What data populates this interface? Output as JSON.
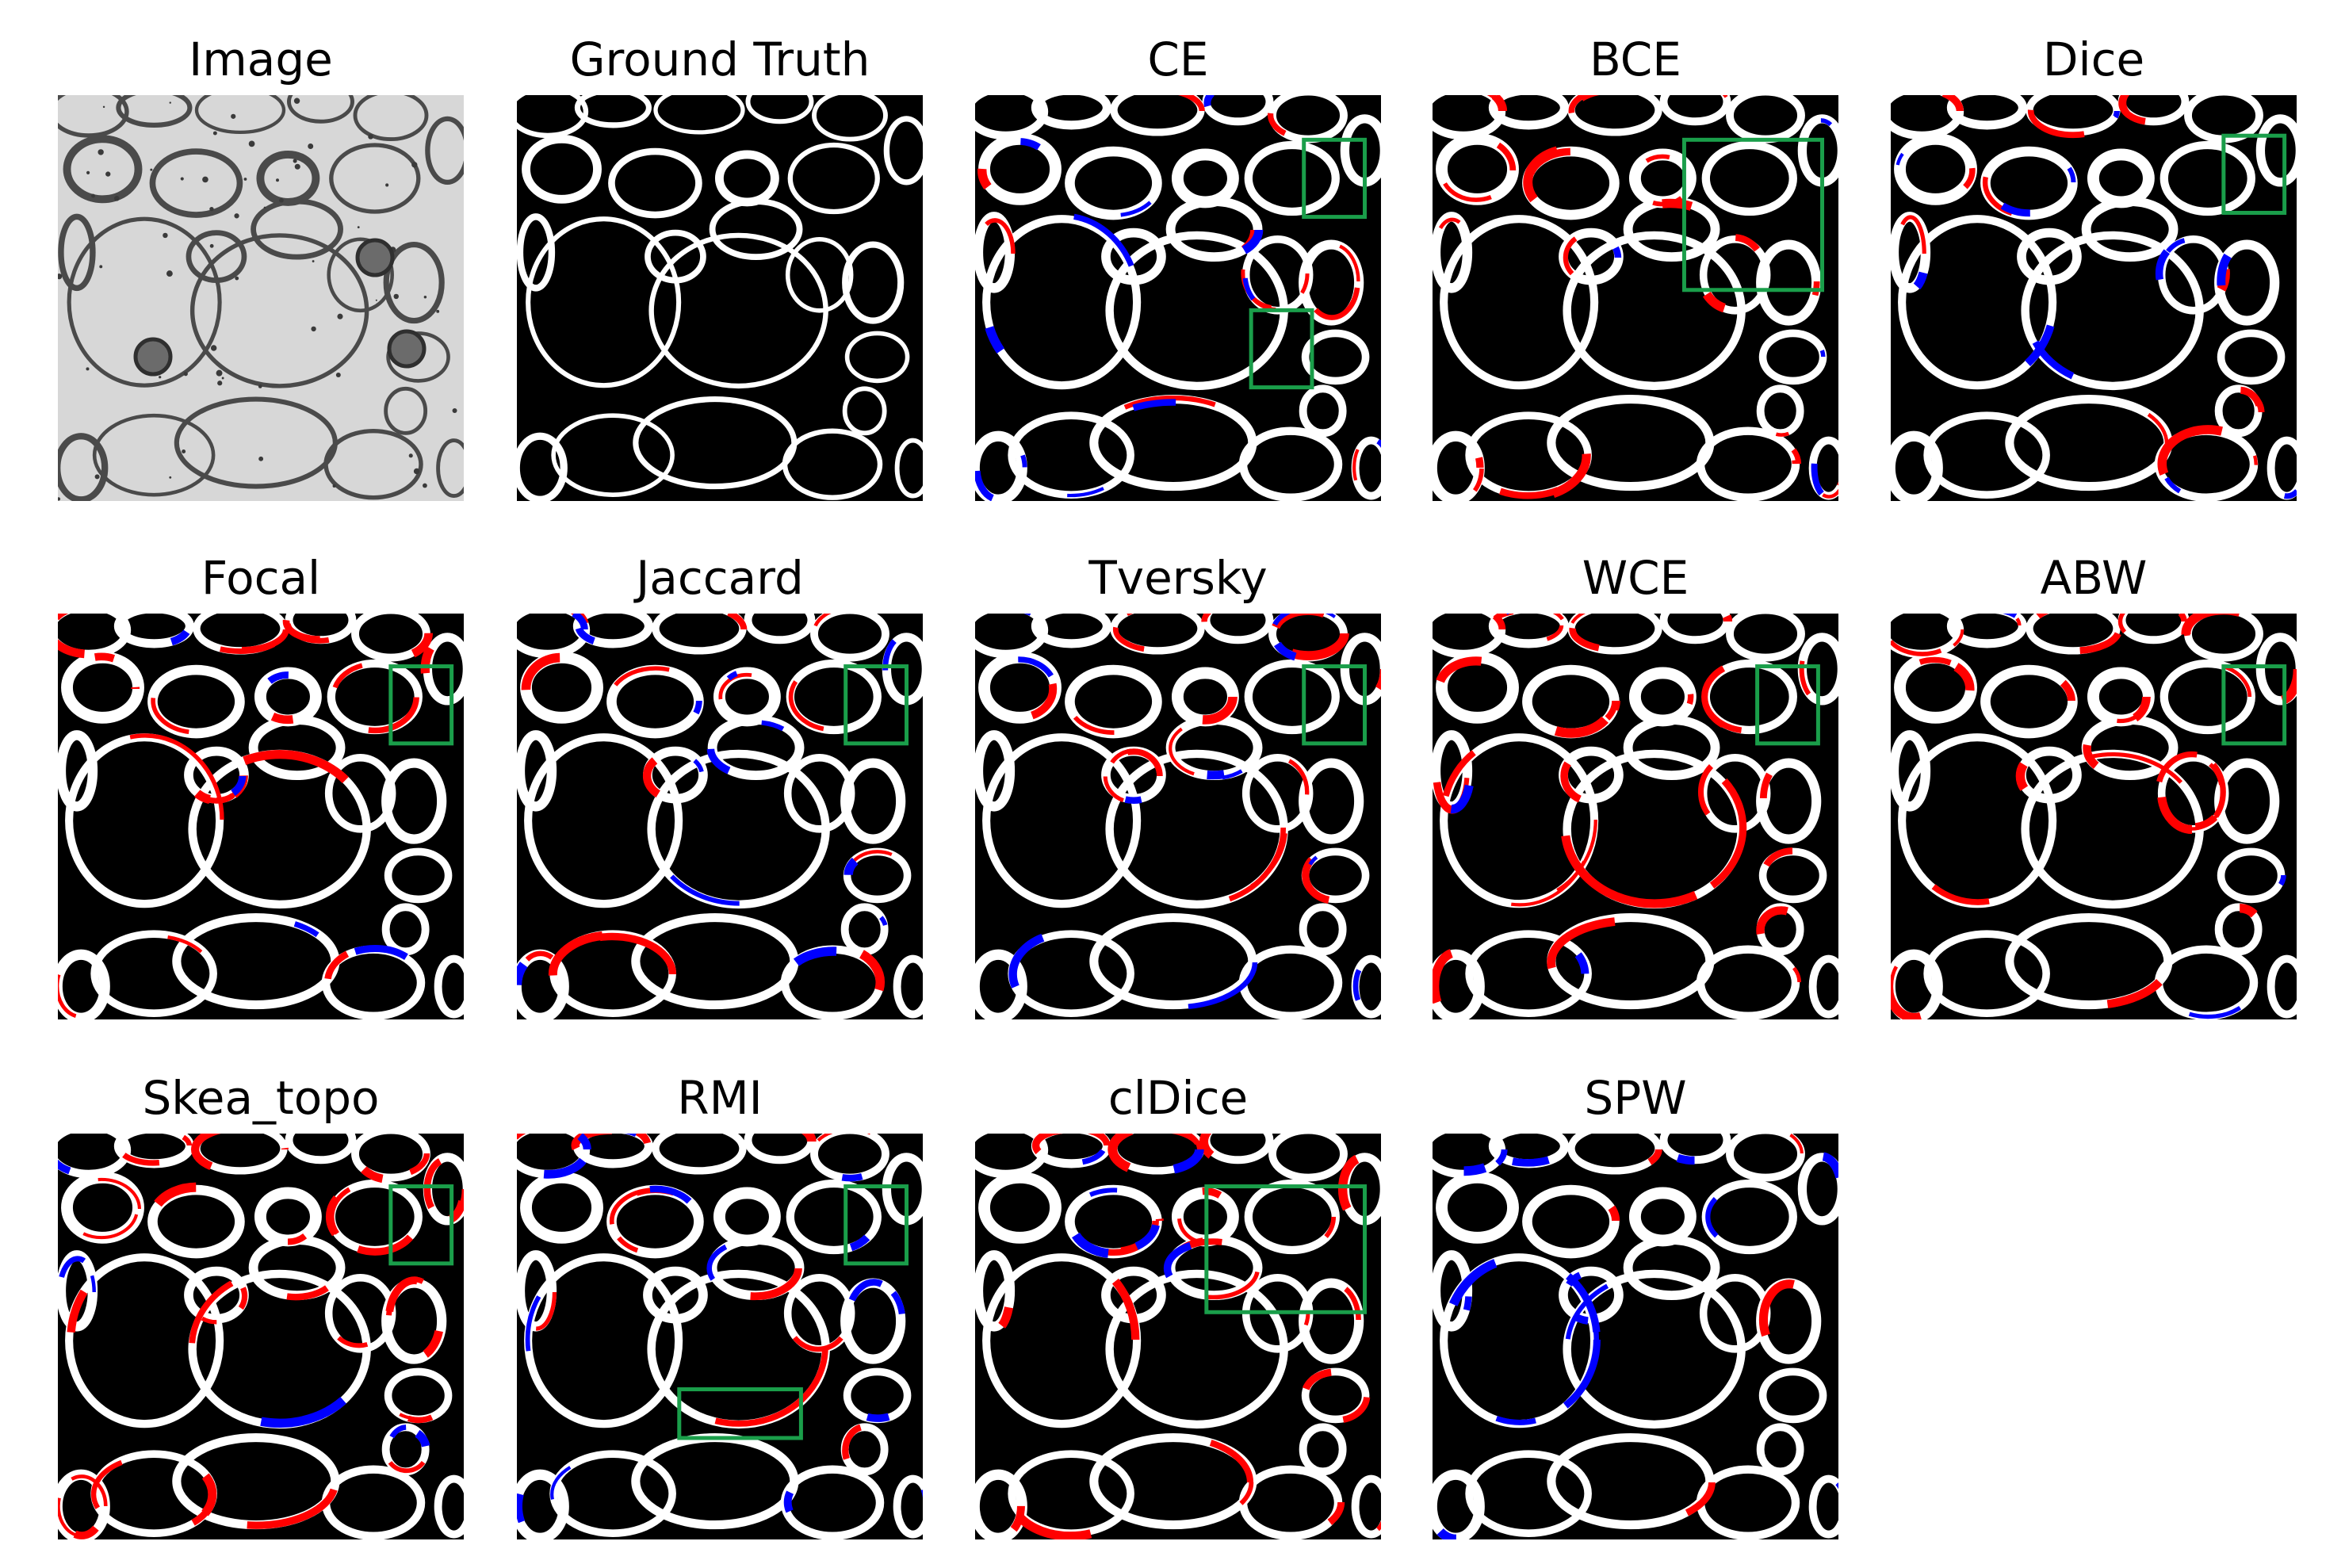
{
  "colors": {
    "background": "#000000",
    "membrane": "#ffffff",
    "false_positive": "#ff0000",
    "false_negative": "#0000ff",
    "highlight_box": "#1a9e4a",
    "em_background": "#d7d7d7",
    "em_membrane": "#4a4a4a"
  },
  "panels": [
    {
      "title": "Image",
      "kind": "em",
      "boxes": []
    },
    {
      "title": "Ground Truth",
      "kind": "gt",
      "boxes": []
    },
    {
      "title": "CE",
      "kind": "pred",
      "red": 0.35,
      "blue": 0.3,
      "boxes": [
        [
          0.81,
          0.11,
          0.15,
          0.19
        ],
        [
          0.68,
          0.53,
          0.15,
          0.19
        ]
      ]
    },
    {
      "title": "BCE",
      "kind": "pred",
      "red": 0.75,
      "blue": 0.12,
      "boxes": [
        [
          0.62,
          0.11,
          0.34,
          0.37
        ]
      ]
    },
    {
      "title": "Dice",
      "kind": "pred",
      "red": 0.35,
      "blue": 0.35,
      "boxes": [
        [
          0.82,
          0.1,
          0.15,
          0.19
        ]
      ]
    },
    {
      "title": "Focal",
      "kind": "pred",
      "red": 0.65,
      "blue": 0.15,
      "boxes": [
        [
          0.82,
          0.13,
          0.15,
          0.19
        ]
      ]
    },
    {
      "title": "Jaccard",
      "kind": "pred",
      "red": 0.4,
      "blue": 0.35,
      "boxes": [
        [
          0.81,
          0.13,
          0.15,
          0.19
        ]
      ]
    },
    {
      "title": "Tversky",
      "kind": "pred",
      "red": 0.45,
      "blue": 0.3,
      "boxes": [
        [
          0.81,
          0.13,
          0.15,
          0.19
        ]
      ]
    },
    {
      "title": "WCE",
      "kind": "pred",
      "red": 0.85,
      "blue": 0.08,
      "boxes": [
        [
          0.8,
          0.13,
          0.15,
          0.19
        ]
      ]
    },
    {
      "title": "ABW",
      "kind": "pred",
      "red": 0.85,
      "blue": 0.08,
      "boxes": [
        [
          0.82,
          0.13,
          0.15,
          0.19
        ]
      ]
    },
    {
      "title": "Skea_topo",
      "kind": "pred",
      "red": 0.9,
      "blue": 0.15,
      "boxes": [
        [
          0.82,
          0.13,
          0.15,
          0.19
        ]
      ]
    },
    {
      "title": "RMI",
      "kind": "pred",
      "red": 0.35,
      "blue": 0.4,
      "boxes": [
        [
          0.81,
          0.13,
          0.15,
          0.19
        ],
        [
          0.4,
          0.63,
          0.3,
          0.12
        ]
      ]
    },
    {
      "title": "clDice",
      "kind": "pred",
      "red": 0.75,
      "blue": 0.15,
      "boxes": [
        [
          0.57,
          0.13,
          0.39,
          0.31
        ]
      ]
    },
    {
      "title": "SPW",
      "kind": "pred",
      "red": 0.12,
      "blue": 0.45,
      "boxes": []
    }
  ]
}
